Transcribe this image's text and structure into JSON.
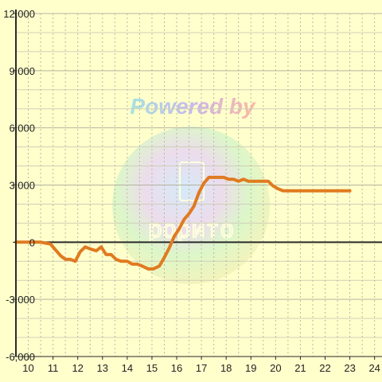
{
  "chart_data": {
    "type": "line",
    "title": "",
    "xlabel": "",
    "ylabel": "",
    "xlim": [
      9.5,
      24.3
    ],
    "ylim": [
      -6000,
      12000
    ],
    "x_ticks": [
      "10",
      "11",
      "12",
      "13",
      "14",
      "15",
      "16",
      "17",
      "18",
      "19",
      "20",
      "21",
      "22",
      "23",
      "24"
    ],
    "y_ticks": [
      "12,000",
      "9,000",
      "6,000",
      "3,000",
      "0",
      "-3,000",
      "-6,000"
    ],
    "grid": true,
    "legend": "none",
    "series": [
      {
        "color": "#e07a20",
        "x": [
          9.5,
          10.0,
          10.25,
          10.5,
          10.7,
          10.9,
          11.1,
          11.3,
          11.5,
          11.7,
          11.9,
          12.1,
          12.3,
          12.5,
          12.75,
          12.95,
          13.15,
          13.35,
          13.55,
          13.75,
          14.0,
          14.2,
          14.4,
          14.6,
          14.85,
          15.05,
          15.3,
          15.5,
          15.7,
          15.9,
          16.1,
          16.3,
          16.5,
          16.7,
          16.9,
          17.1,
          17.3,
          17.5,
          17.7,
          17.9,
          18.1,
          18.3,
          18.5,
          18.7,
          18.9,
          19.1,
          19.3,
          19.5,
          19.7,
          19.9,
          20.1,
          20.3,
          20.5,
          20.7,
          20.9,
          21.1,
          21.3,
          21.5,
          21.7,
          21.9,
          22.1,
          22.3,
          22.5,
          22.7,
          22.9,
          23.0
        ],
        "y": [
          0,
          0,
          0,
          0,
          -50,
          -100,
          -400,
          -700,
          -900,
          -900,
          -1000,
          -500,
          -250,
          -350,
          -450,
          -250,
          -650,
          -650,
          -900,
          -1000,
          -1000,
          -1150,
          -1150,
          -1250,
          -1400,
          -1400,
          -1250,
          -800,
          -300,
          300,
          700,
          1200,
          1500,
          1900,
          2600,
          3100,
          3400,
          3400,
          3400,
          3400,
          3300,
          3300,
          3200,
          3300,
          3200,
          3200,
          3200,
          3200,
          3200,
          2950,
          2800,
          2700,
          2700,
          2700,
          2700,
          2700,
          2700,
          2700,
          2700,
          2700,
          2700,
          2700,
          2700,
          2700,
          2700,
          2700
        ]
      }
    ]
  },
  "watermark": {
    "text": "Powered by",
    "logo_text": "рорито"
  }
}
